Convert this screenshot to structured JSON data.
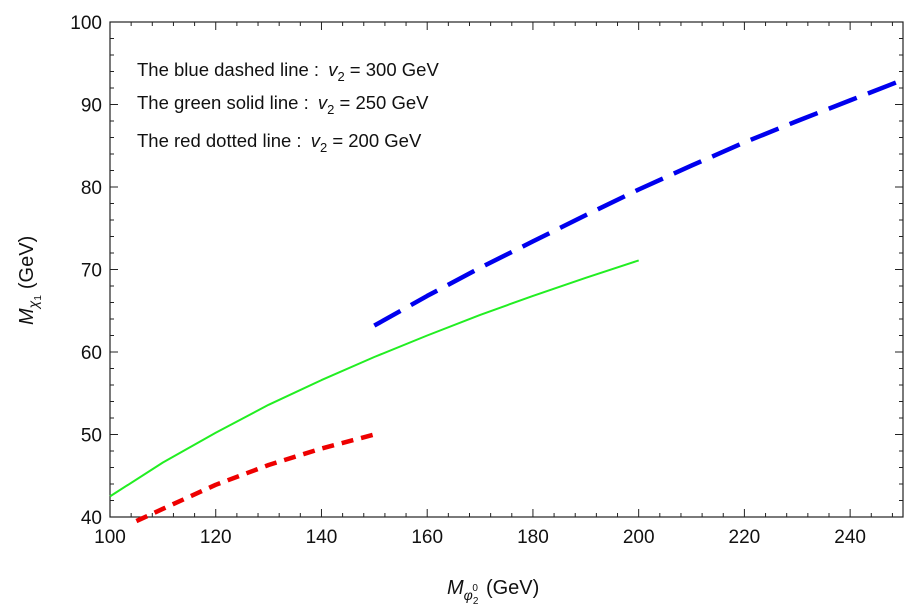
{
  "chart_data": {
    "type": "line",
    "title": "",
    "xlabel": {
      "symbol": "M",
      "sub": "φ",
      "subsub": "2",
      "sup": "0",
      "unit": "(GeV)"
    },
    "ylabel": {
      "symbol": "M",
      "sub": "χ",
      "subsub": "1",
      "unit": "(GeV)"
    },
    "xlim": [
      100,
      250
    ],
    "ylim": [
      40,
      100
    ],
    "xticks": [
      100,
      120,
      140,
      160,
      180,
      200,
      220,
      240
    ],
    "yticks": [
      40,
      50,
      60,
      70,
      80,
      90,
      100
    ],
    "grid": false,
    "series": [
      {
        "name": "blue-dashed",
        "color": "#0000ee",
        "dash": "dashed",
        "x": [
          150,
          160,
          170,
          180,
          190,
          200,
          210,
          220,
          230,
          240,
          250
        ],
        "y": [
          63.2,
          66.8,
          70.2,
          73.4,
          76.6,
          79.7,
          82.6,
          85.4,
          88.0,
          90.5,
          93.0
        ]
      },
      {
        "name": "green-solid",
        "color": "#22ee22",
        "dash": "solid",
        "x": [
          100,
          110,
          120,
          130,
          140,
          150,
          160,
          170,
          180,
          190,
          200
        ],
        "y": [
          42.5,
          46.6,
          50.2,
          53.6,
          56.6,
          59.4,
          62.0,
          64.5,
          66.8,
          69.0,
          71.1
        ]
      },
      {
        "name": "red-dotted",
        "color": "#ee0000",
        "dash": "dotted",
        "x": [
          105,
          110,
          120,
          130,
          140,
          150
        ],
        "y": [
          39.5,
          41.0,
          43.9,
          46.3,
          48.3,
          50.0
        ]
      }
    ],
    "annotations": [
      {
        "prefix": "The blue dashed line : ",
        "var": "v",
        "sub": "2",
        "value": " = 300 GeV"
      },
      {
        "prefix": "The green solid line : ",
        "var": "v",
        "sub": "2",
        "value": " = 250 GeV"
      },
      {
        "prefix": "The red dotted line : ",
        "var": "v",
        "sub": "2",
        "value": " = 200 GeV"
      }
    ]
  }
}
